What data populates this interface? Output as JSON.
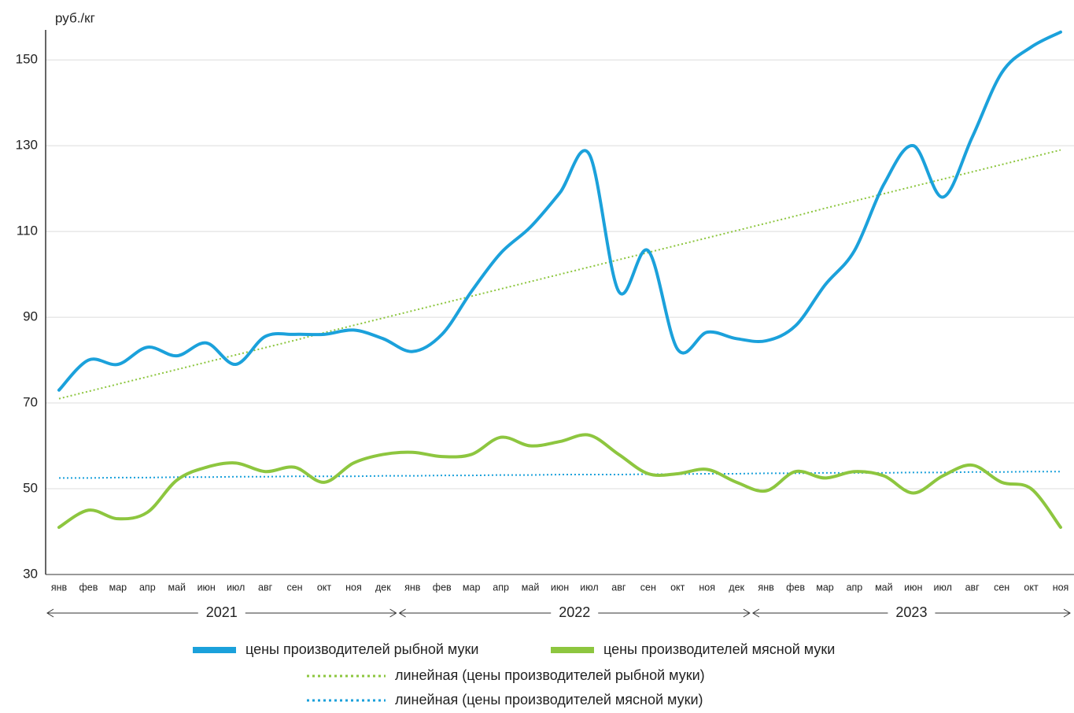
{
  "chart_data": {
    "type": "line",
    "y_label": "руб./кг",
    "categories": [
      "янв",
      "фев",
      "мар",
      "апр",
      "май",
      "июн",
      "июл",
      "авг",
      "сен",
      "окт",
      "ноя",
      "дек",
      "янв",
      "фев",
      "мар",
      "апр",
      "май",
      "июн",
      "июл",
      "авг",
      "сен",
      "окт",
      "ноя",
      "дек",
      "янв",
      "фев",
      "мар",
      "апр",
      "май",
      "июн",
      "июл",
      "авг",
      "сен",
      "окт",
      "ноя"
    ],
    "year_labels": [
      "2021",
      "2022",
      "2023"
    ],
    "ylim": [
      30,
      157
    ],
    "yticks": [
      30,
      50,
      70,
      90,
      110,
      130,
      150
    ],
    "grid": true,
    "series": [
      {
        "name": "цены производителей рыбной муки",
        "color": "#1ba1db",
        "style": "solid",
        "values": [
          73,
          80,
          79,
          83,
          81,
          84,
          79,
          85.5,
          86,
          86,
          87,
          85,
          82,
          86,
          96,
          105,
          111,
          119,
          128,
          96,
          105.5,
          82.5,
          86.5,
          85,
          84.5,
          88,
          97.5,
          105.5,
          121,
          130,
          118,
          132,
          147,
          153,
          156.5
        ]
      },
      {
        "name": "цены производителей мясной муки",
        "color": "#8dc63f",
        "style": "solid",
        "values": [
          41,
          45,
          43,
          44.5,
          52,
          55,
          56,
          54,
          55,
          51.5,
          56,
          58,
          58.5,
          57.5,
          58,
          62,
          60,
          61,
          62.5,
          58,
          53.5,
          53.5,
          54.5,
          51.5,
          49.5,
          54,
          52.5,
          54,
          53,
          49,
          53,
          55.5,
          51.5,
          50,
          41
        ]
      },
      {
        "name": "линейная (цены производителей рыбной муки)",
        "color": "#8dc63f",
        "style": "dotted",
        "values": [
          71.0,
          72.7,
          74.4,
          76.1,
          77.8,
          79.5,
          81.2,
          82.9,
          84.6,
          86.4,
          88.1,
          89.8,
          91.5,
          93.2,
          94.9,
          96.6,
          98.3,
          100.0,
          101.7,
          103.4,
          105.1,
          106.8,
          108.5,
          110.2,
          111.9,
          113.6,
          115.4,
          117.1,
          118.8,
          120.5,
          122.2,
          123.9,
          125.6,
          127.3,
          129.0
        ]
      },
      {
        "name": "линейная (цены производителей мясной муки)",
        "color": "#1ba1db",
        "style": "dotted",
        "values": [
          52.5,
          52.5,
          52.6,
          52.6,
          52.7,
          52.7,
          52.8,
          52.8,
          52.9,
          52.9,
          52.9,
          53.0,
          53.0,
          53.1,
          53.1,
          53.2,
          53.2,
          53.3,
          53.3,
          53.3,
          53.4,
          53.4,
          53.5,
          53.5,
          53.6,
          53.6,
          53.7,
          53.7,
          53.7,
          53.8,
          53.8,
          53.9,
          53.9,
          54.0,
          54.0
        ]
      }
    ]
  }
}
